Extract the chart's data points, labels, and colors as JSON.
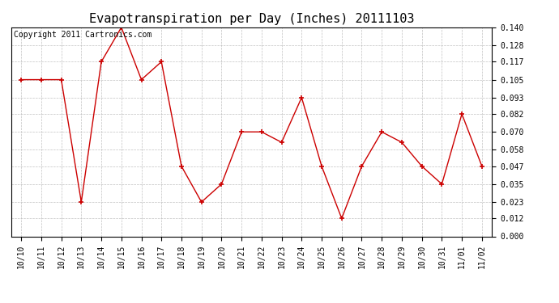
{
  "title": "Evapotranspiration per Day (Inches) 20111103",
  "copyright_text": "Copyright 2011 Cartronics.com",
  "x_labels": [
    "10/10",
    "10/11",
    "10/12",
    "10/13",
    "10/14",
    "10/15",
    "10/16",
    "10/17",
    "10/18",
    "10/19",
    "10/20",
    "10/21",
    "10/22",
    "10/23",
    "10/24",
    "10/25",
    "10/26",
    "10/27",
    "10/28",
    "10/29",
    "10/30",
    "10/31",
    "11/01",
    "11/02"
  ],
  "y_values": [
    0.105,
    0.105,
    0.105,
    0.023,
    0.117,
    0.14,
    0.105,
    0.117,
    0.047,
    0.023,
    0.035,
    0.07,
    0.07,
    0.063,
    0.093,
    0.047,
    0.012,
    0.047,
    0.07,
    0.063,
    0.047,
    0.035,
    0.082,
    0.047
  ],
  "y_ticks": [
    0.0,
    0.012,
    0.023,
    0.035,
    0.047,
    0.058,
    0.07,
    0.082,
    0.093,
    0.105,
    0.117,
    0.128,
    0.14
  ],
  "line_color": "#cc0000",
  "marker": "+",
  "background_color": "#ffffff",
  "grid_color": "#bbbbbb",
  "ylim": [
    0.0,
    0.1401
  ],
  "title_fontsize": 11,
  "copyright_fontsize": 7,
  "tick_fontsize": 7,
  "ytick_fontsize": 7
}
